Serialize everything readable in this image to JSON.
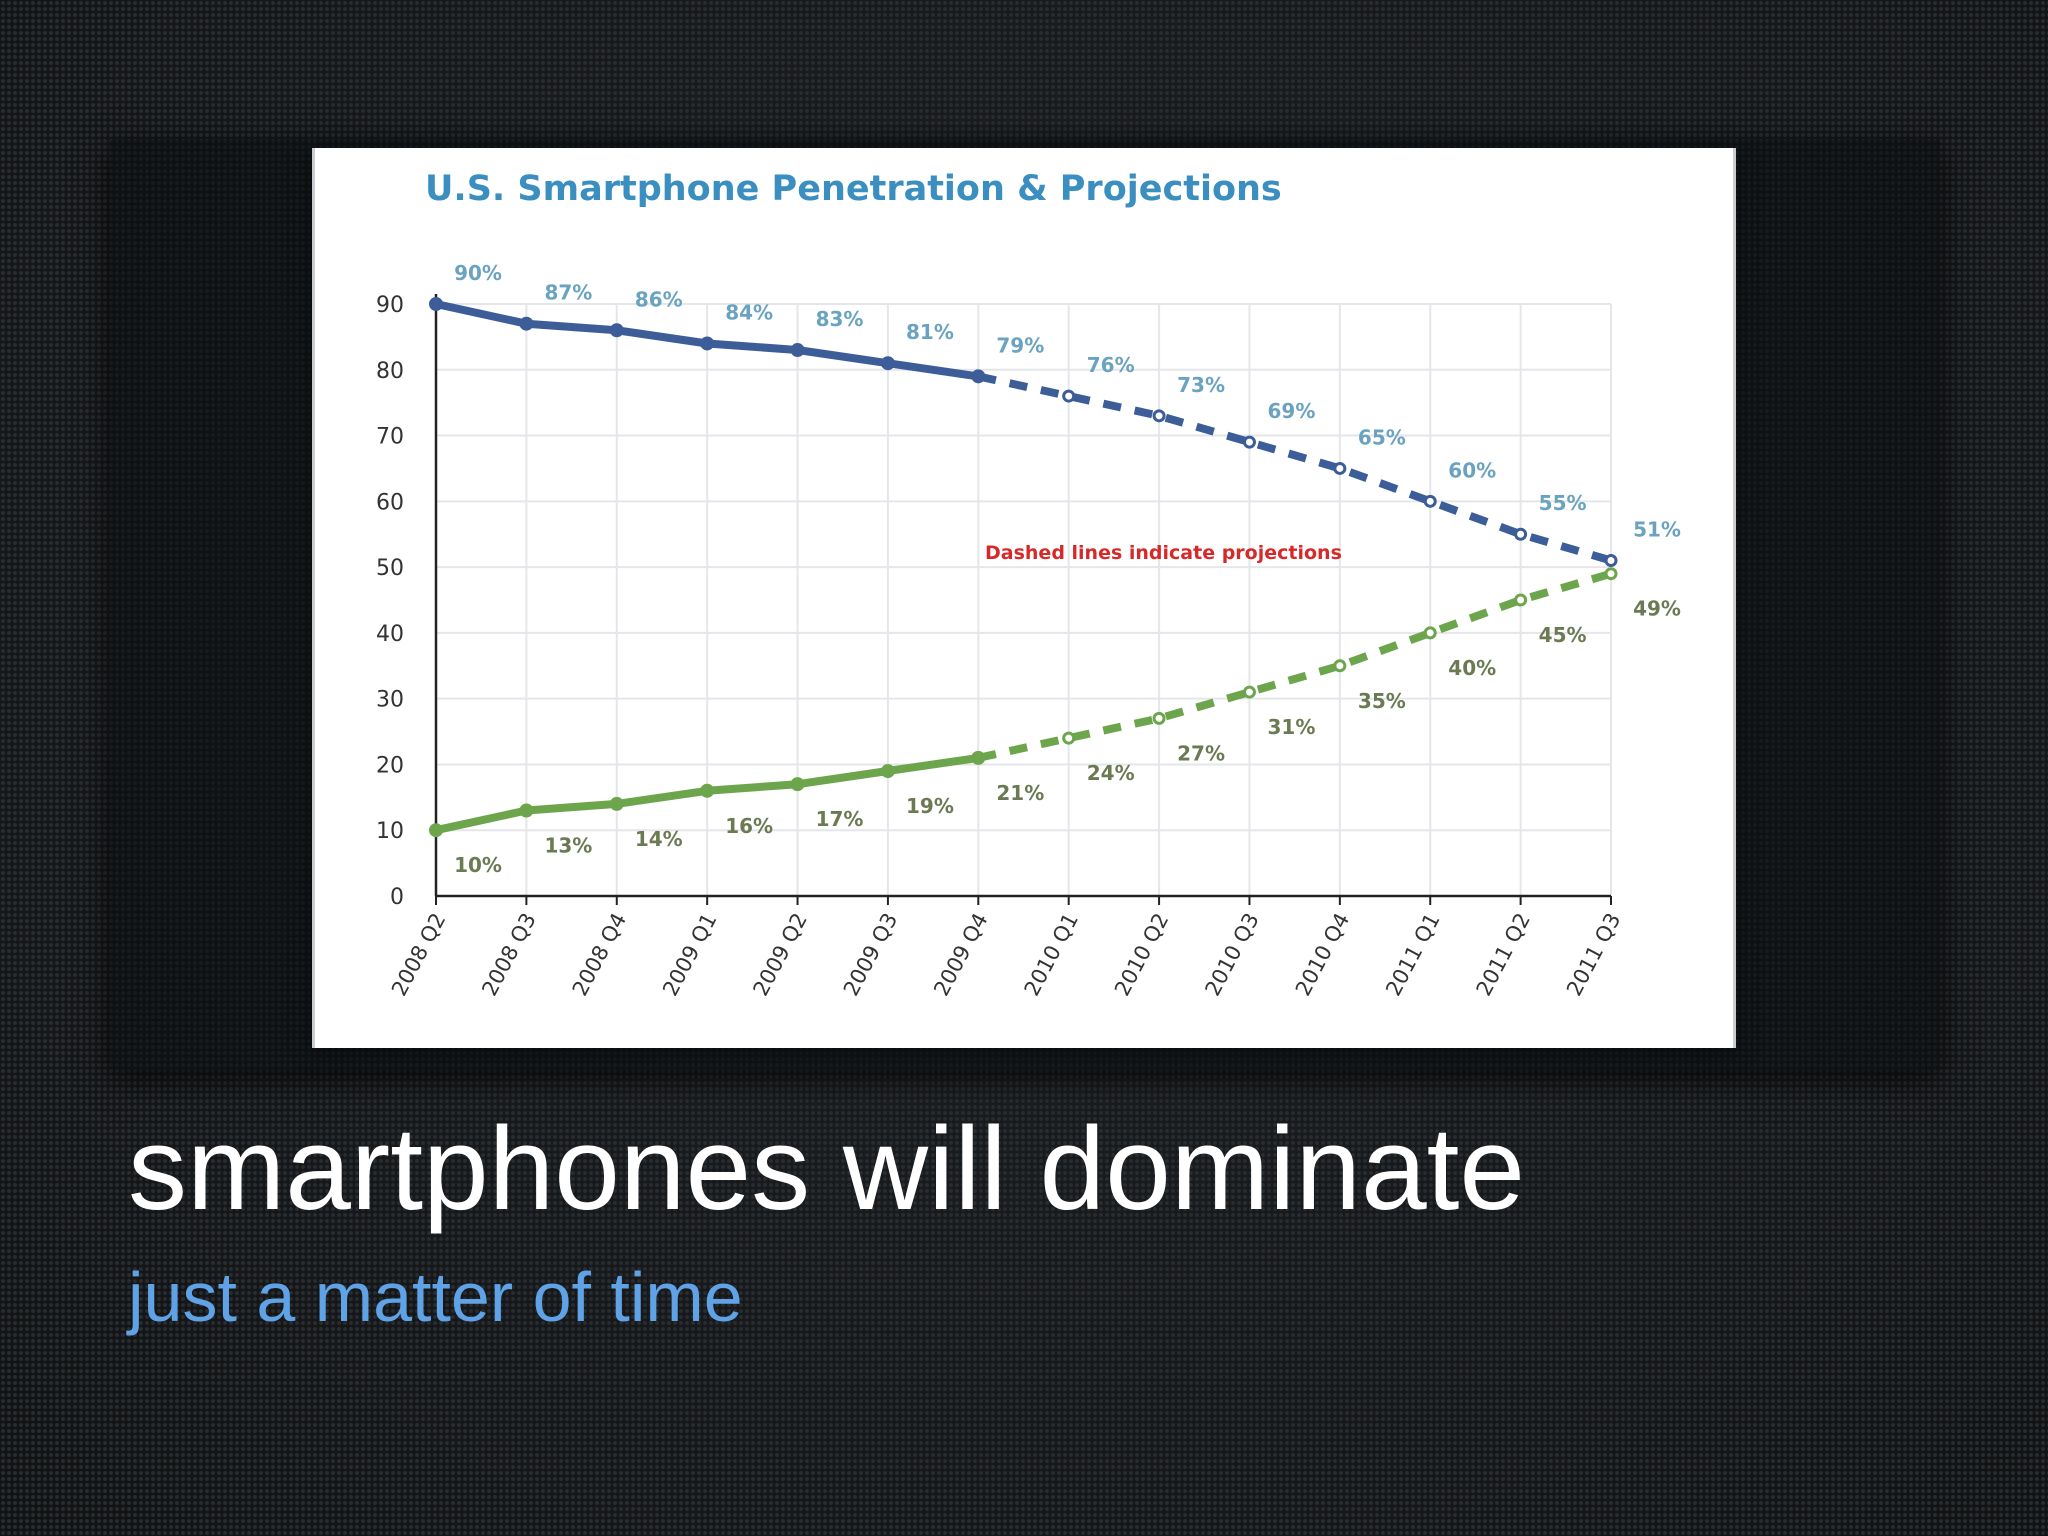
{
  "slide": {
    "headline": "smartphones will dominate",
    "subheadline": "just a matter of time",
    "colors": {
      "background": "#17191b",
      "headline": "#ffffff",
      "subheadline": "#5fa3e6"
    }
  },
  "chart_data": {
    "type": "line",
    "title": "U.S. Smartphone Penetration & Projections",
    "annotation": "Dashed lines indicate projections",
    "xlabel": "",
    "ylabel": "",
    "ylim": [
      0,
      90
    ],
    "yticks": [
      "0",
      "10",
      "20",
      "30",
      "40",
      "50",
      "60",
      "70",
      "80",
      "90"
    ],
    "grid": true,
    "categories": [
      "2008 Q2",
      "2008 Q3",
      "2008 Q4",
      "2009 Q1",
      "2009 Q2",
      "2009 Q3",
      "2009 Q4",
      "2010 Q1",
      "2010 Q2",
      "2010 Q3",
      "2010 Q4",
      "2011 Q1",
      "2011 Q2",
      "2011 Q3"
    ],
    "projection_start": "2009 Q4",
    "series": [
      {
        "color": "#3d5d99",
        "label_color": "#6aa3c0",
        "values": [
          90,
          87,
          86,
          84,
          83,
          81,
          79,
          76,
          73,
          69,
          65,
          60,
          55,
          51
        ],
        "labels": [
          "90%",
          "87%",
          "86%",
          "84%",
          "83%",
          "81%",
          "79%",
          "76%",
          "73%",
          "69%",
          "65%",
          "60%",
          "55%",
          "51%"
        ]
      },
      {
        "color": "#6da54c",
        "label_color": "#6b7a52",
        "values": [
          10,
          13,
          14,
          16,
          17,
          19,
          21,
          24,
          27,
          31,
          35,
          40,
          45,
          49
        ],
        "labels": [
          "10%",
          "13%",
          "14%",
          "16%",
          "17%",
          "19%",
          "21%",
          "24%",
          "27%",
          "31%",
          "35%",
          "40%",
          "45%",
          "49%"
        ]
      }
    ]
  }
}
